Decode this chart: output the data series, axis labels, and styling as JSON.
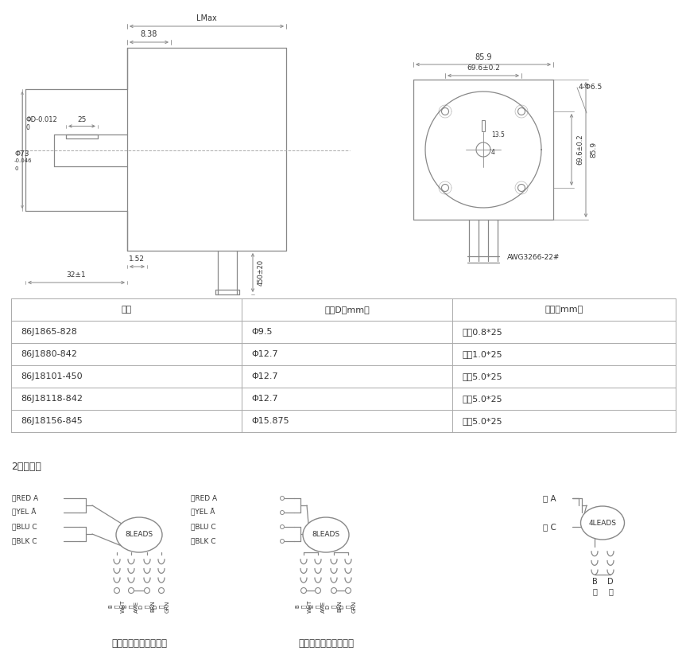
{
  "bg_color": "#ffffff",
  "line_color": "#888888",
  "text_color": "#333333",
  "table_header": [
    "型号",
    "轴径D（mm）",
    "键槽（mm）"
  ],
  "table_rows": [
    [
      "86J1865-828",
      "Φ9.5",
      "平台0.8*25"
    ],
    [
      "86J1880-842",
      "Φ12.7",
      "平台1.0*25"
    ],
    [
      "86J18101-450",
      "Φ12.7",
      "平键5.0*25"
    ],
    [
      "86J18118-842",
      "Φ12.7",
      "平键5.0*25"
    ],
    [
      "86J18156-845",
      "Φ15.875",
      "平键5.0*25"
    ]
  ],
  "wiring_title": "2，接线图",
  "caption1": "八线电机串联低速接法",
  "caption2": "八线电机并联高速接法",
  "labels_d1": [
    "红RED A",
    "黄YEL Ā",
    "蓝BLU C",
    "黑BLK C"
  ],
  "labels_d2": [
    "红RED A",
    "黄YEL Ā",
    "蓝BLU C",
    "黑BLK C"
  ],
  "label_red_a": "红 A",
  "label_green_c": "绿 C",
  "coil_labels_1": [
    "B\n白\nWHT",
    "B\n紫\nAME",
    "D\n棕\nBRN",
    "D\n绿\nGRN"
  ],
  "coil_labels_2": [
    "B\n白\nWHT",
    "B\n橙\nAME",
    "D\n棕\nBRN",
    "D\n绿\nGRN"
  ],
  "label_b_yellow": "B\n黄",
  "label_d_blue": "D\n蓝"
}
